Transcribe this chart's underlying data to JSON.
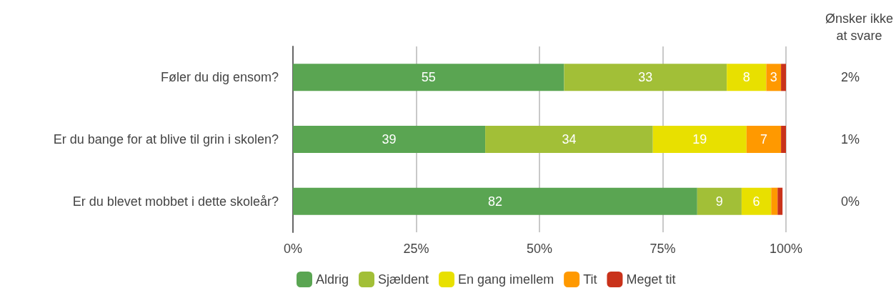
{
  "chart_data": {
    "type": "bar",
    "orientation": "horizontal",
    "stacked": true,
    "categories": [
      "Føler du dig ensom?",
      "Er du bange for at blive til grin i skolen?",
      "Er du blevet mobbet i dette skoleår?"
    ],
    "series": [
      {
        "name": "Aldrig",
        "color": "#5aa552",
        "values": [
          55,
          39,
          82
        ],
        "value_labels": [
          "55",
          "39",
          "82"
        ]
      },
      {
        "name": "Sjældent",
        "color": "#a2bf37",
        "values": [
          33,
          34,
          9
        ],
        "value_labels": [
          "33",
          "34",
          "9"
        ]
      },
      {
        "name": "En gang imellem",
        "color": "#e8e000",
        "values": [
          8,
          19,
          6
        ],
        "value_labels": [
          "8",
          "19",
          "6"
        ]
      },
      {
        "name": "Tit",
        "color": "#ff9900",
        "values": [
          3,
          7,
          1.3
        ],
        "value_labels": [
          "3",
          "7",
          null
        ]
      },
      {
        "name": "Meget tit",
        "color": "#c9321a",
        "values": [
          1,
          1.4,
          1
        ],
        "value_labels": [
          null,
          null,
          null
        ]
      }
    ],
    "xlim": [
      0,
      100
    ],
    "xticks": [
      {
        "value": 0,
        "label": "0%"
      },
      {
        "value": 25,
        "label": "25%"
      },
      {
        "value": 50,
        "label": "50%"
      },
      {
        "value": 75,
        "label": "75%"
      },
      {
        "value": 100,
        "label": "100%"
      }
    ],
    "grid": "x",
    "legend": "bottom",
    "annotations": [
      "Ønsker ikke\nat svare",
      "2%",
      "1%",
      "0%"
    ]
  }
}
